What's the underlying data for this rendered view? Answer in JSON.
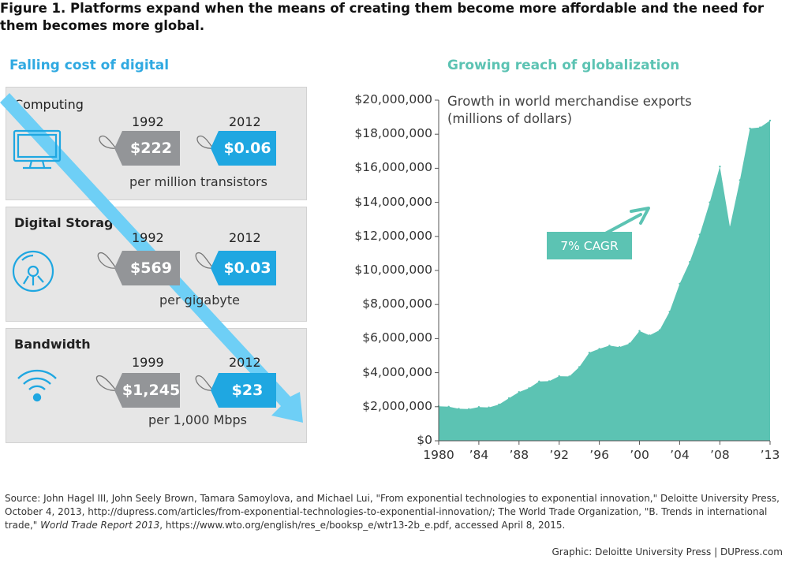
{
  "figure_title": "Figure 1. Platforms expand when the means of creating them become more affordable and the need for them becomes more global.",
  "left": {
    "title": "Falling cost of digital",
    "panels": [
      {
        "label": "Computing",
        "old_year": "1992",
        "old_price": "$222",
        "new_year": "2012",
        "new_price": "$0.06",
        "unit": "per million transistors",
        "icon": "monitor-icon"
      },
      {
        "label": "Digital Storage",
        "old_year": "1992",
        "old_price": "$569",
        "new_year": "2012",
        "new_price": "$0.03",
        "unit": "per gigabyte",
        "icon": "disc-icon"
      },
      {
        "label": "Bandwidth",
        "old_year": "1999",
        "old_price": "$1,245",
        "new_year": "2012",
        "new_price": "$23",
        "unit": "per 1,000 Mbps",
        "icon": "wifi-icon"
      }
    ]
  },
  "right": {
    "title": "Growing reach of globalization",
    "annotation_line1": "Growth in world merchandise exports",
    "annotation_line2": "(millions of dollars)",
    "cagr_label": "7% CAGR"
  },
  "chart_data": {
    "type": "area",
    "title": "Growth in world merchandise exports",
    "ylabel": "(millions of dollars)",
    "xlabel": "",
    "x": [
      1980,
      1981,
      1982,
      1983,
      1984,
      1985,
      1986,
      1987,
      1988,
      1989,
      1990,
      1991,
      1992,
      1993,
      1994,
      1995,
      1996,
      1997,
      1998,
      1999,
      2000,
      2001,
      2002,
      2003,
      2004,
      2005,
      2006,
      2007,
      2008,
      2009,
      2010,
      2011,
      2012,
      2013
    ],
    "values": [
      2030000,
      2000000,
      1880000,
      1860000,
      1980000,
      1960000,
      2130000,
      2500000,
      2860000,
      3090000,
      3480000,
      3500000,
      3790000,
      3780000,
      4330000,
      5170000,
      5400000,
      5590000,
      5500000,
      5710000,
      6450000,
      6190000,
      6490000,
      7580000,
      9220000,
      10500000,
      12100000,
      14000000,
      16100000,
      12550000,
      15300000,
      18340000,
      18400000,
      18800000
    ],
    "ylim": [
      0,
      20000000
    ],
    "xlim": [
      1980,
      2013
    ],
    "yticks": [
      0,
      2000000,
      4000000,
      6000000,
      8000000,
      10000000,
      12000000,
      14000000,
      16000000,
      18000000,
      20000000
    ],
    "ytick_labels": [
      "$0",
      "$2,000,000",
      "$4,000,000",
      "$6,000,000",
      "$8,000,000",
      "$10,000,000",
      "$12,000,000",
      "$14,000,000",
      "$16,000,000",
      "$18,000,000",
      "$20,000,000"
    ],
    "xticks": [
      1980,
      1984,
      1988,
      1992,
      1996,
      2000,
      2004,
      2008,
      2013
    ],
    "xtick_labels": [
      "1980",
      "’84",
      "’88",
      "’92",
      "’96",
      "’00",
      "’04",
      "’08",
      "’13"
    ],
    "color": "#5cc3b3",
    "grid": false,
    "annotation": "7% CAGR"
  },
  "colors": {
    "blue": "#1fa7e1",
    "light_blue": "#6ecff6",
    "teal": "#5cc3b3",
    "gray_tag": "#939598"
  },
  "footer": {
    "source_prefix": "Source:  John Hagel III, John Seely Brown, Tamara Samoylova, and Michael Lui, \"From exponential technologies to exponential innovation,\" Deloitte University Press, October 4, 2013, http://dupress.com/articles/from-exponential-technologies-to-exponential-innovation/; The World Trade Organization, \"B. Trends in international trade,\" ",
    "source_italic": "World Trade Report 2013",
    "source_suffix": ", https://www.wto.org/english/res_e/booksp_e/wtr13-2b_e.pdf, accessed April 8, 2015.",
    "credit": "Graphic: Deloitte University Press  |  DUPress.com"
  }
}
